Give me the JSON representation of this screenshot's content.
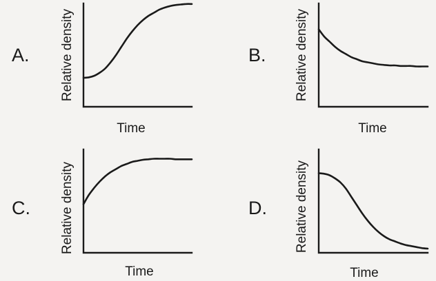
{
  "chart_data": [
    {
      "type": "line",
      "option": "A.",
      "xlabel": "Time",
      "ylabel": "Relative density",
      "xlim": [
        0,
        1
      ],
      "ylim": [
        0,
        1
      ],
      "series": [
        {
          "x": [
            0,
            0.05,
            0.1,
            0.15,
            0.2,
            0.25,
            0.3,
            0.35,
            0.4,
            0.45,
            0.5,
            0.55,
            0.6,
            0.65,
            0.7,
            0.75,
            0.8,
            0.85,
            0.9,
            0.95,
            1
          ],
          "values": [
            0.28,
            0.285,
            0.3,
            0.33,
            0.37,
            0.43,
            0.5,
            0.58,
            0.66,
            0.73,
            0.79,
            0.84,
            0.88,
            0.91,
            0.94,
            0.96,
            0.975,
            0.985,
            0.99,
            0.995,
            0.995
          ]
        }
      ]
    },
    {
      "type": "line",
      "option": "B.",
      "xlabel": "Time",
      "ylabel": "Relative density",
      "xlim": [
        0,
        1
      ],
      "ylim": [
        0,
        1
      ],
      "series": [
        {
          "x": [
            0,
            0.05,
            0.1,
            0.15,
            0.2,
            0.25,
            0.3,
            0.35,
            0.4,
            0.45,
            0.5,
            0.55,
            0.6,
            0.65,
            0.7,
            0.75,
            0.8,
            0.85,
            0.9,
            0.95,
            1
          ],
          "values": [
            0.75,
            0.68,
            0.63,
            0.58,
            0.54,
            0.51,
            0.48,
            0.46,
            0.44,
            0.43,
            0.42,
            0.41,
            0.405,
            0.4,
            0.4,
            0.395,
            0.395,
            0.395,
            0.39,
            0.39,
            0.39
          ]
        }
      ]
    },
    {
      "type": "line",
      "option": "C.",
      "xlabel": "Time",
      "ylabel": "Relative density",
      "xlim": [
        0,
        1
      ],
      "ylim": [
        0,
        1
      ],
      "series": [
        {
          "x": [
            0,
            0.05,
            0.1,
            0.15,
            0.2,
            0.25,
            0.3,
            0.35,
            0.4,
            0.45,
            0.5,
            0.55,
            0.6,
            0.65,
            0.7,
            0.75,
            0.8,
            0.85,
            0.9,
            0.95,
            1
          ],
          "values": [
            0.47,
            0.56,
            0.63,
            0.69,
            0.74,
            0.78,
            0.81,
            0.84,
            0.86,
            0.88,
            0.89,
            0.9,
            0.905,
            0.91,
            0.91,
            0.91,
            0.91,
            0.905,
            0.905,
            0.905,
            0.905
          ]
        }
      ]
    },
    {
      "type": "line",
      "option": "D.",
      "xlabel": "Time",
      "ylabel": "Relative density",
      "xlim": [
        0,
        1
      ],
      "ylim": [
        0,
        1
      ],
      "series": [
        {
          "x": [
            0,
            0.05,
            0.1,
            0.15,
            0.2,
            0.25,
            0.3,
            0.35,
            0.4,
            0.45,
            0.5,
            0.55,
            0.6,
            0.65,
            0.7,
            0.75,
            0.8,
            0.85,
            0.9,
            0.95,
            1
          ],
          "values": [
            0.77,
            0.765,
            0.75,
            0.72,
            0.68,
            0.62,
            0.54,
            0.46,
            0.38,
            0.31,
            0.25,
            0.2,
            0.16,
            0.13,
            0.11,
            0.09,
            0.075,
            0.065,
            0.055,
            0.045,
            0.04
          ]
        }
      ]
    }
  ]
}
